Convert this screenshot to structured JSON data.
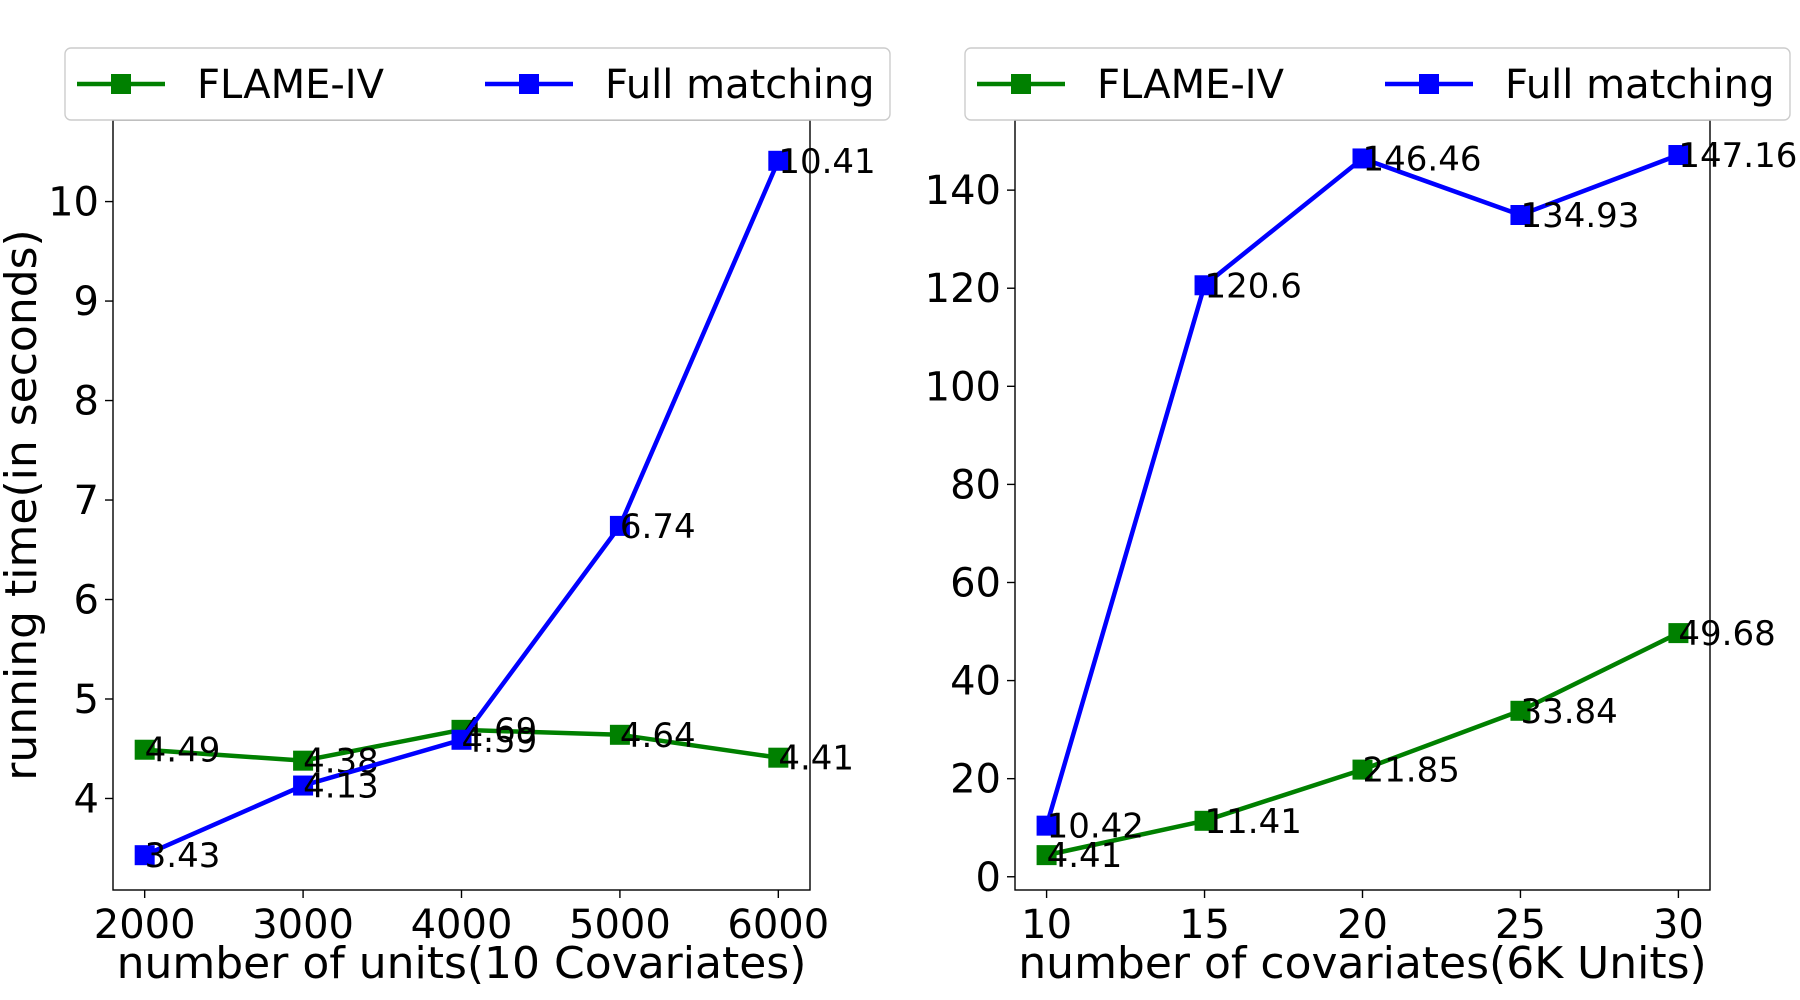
{
  "chart_data": [
    {
      "type": "line",
      "xlabel": "number of units(10 Covariates)",
      "ylabel": "running time(in seconds)",
      "x": [
        2000,
        3000,
        4000,
        5000,
        6000
      ],
      "xticks": [
        "2000",
        "3000",
        "4000",
        "5000",
        "6000"
      ],
      "xlim": [
        1800,
        6200
      ],
      "yticks": [
        "4",
        "5",
        "6",
        "7",
        "8",
        "9",
        "10"
      ],
      "ylim": [
        3.08,
        10.82
      ],
      "grid": false,
      "legend_position": "top",
      "series": [
        {
          "name": "FLAME-IV",
          "color": "#008000",
          "values": [
            4.49,
            4.38,
            4.69,
            4.64,
            4.41
          ],
          "labels": [
            "4.49",
            "4.38",
            "4.69",
            "4.64",
            "4.41"
          ]
        },
        {
          "name": "Full matching",
          "color": "#0000ff",
          "values": [
            3.43,
            4.13,
            4.59,
            6.74,
            10.41
          ],
          "labels": [
            "3.43",
            "4.13",
            "4.59",
            "6.74",
            "10.41"
          ]
        }
      ]
    },
    {
      "type": "line",
      "xlabel": "number of covariates(6K Units)",
      "ylabel": "",
      "x": [
        10,
        15,
        20,
        25,
        30
      ],
      "xticks": [
        "10",
        "15",
        "20",
        "25",
        "30"
      ],
      "xlim": [
        9.0,
        31.0
      ],
      "yticks": [
        "0",
        "20",
        "40",
        "60",
        "80",
        "100",
        "120",
        "140"
      ],
      "ylim": [
        -2.7,
        154.3
      ],
      "grid": false,
      "legend_position": "top",
      "series": [
        {
          "name": "FLAME-IV",
          "color": "#008000",
          "values": [
            4.41,
            11.41,
            21.85,
            33.84,
            49.68
          ],
          "labels": [
            "4.41",
            "11.41",
            "21.85",
            "33.84",
            "49.68"
          ]
        },
        {
          "name": "Full matching",
          "color": "#0000ff",
          "values": [
            10.42,
            120.6,
            146.46,
            134.93,
            147.16
          ],
          "labels": [
            "10.42",
            "120.6",
            "146.46",
            "134.93",
            "147.16"
          ]
        }
      ]
    }
  ]
}
